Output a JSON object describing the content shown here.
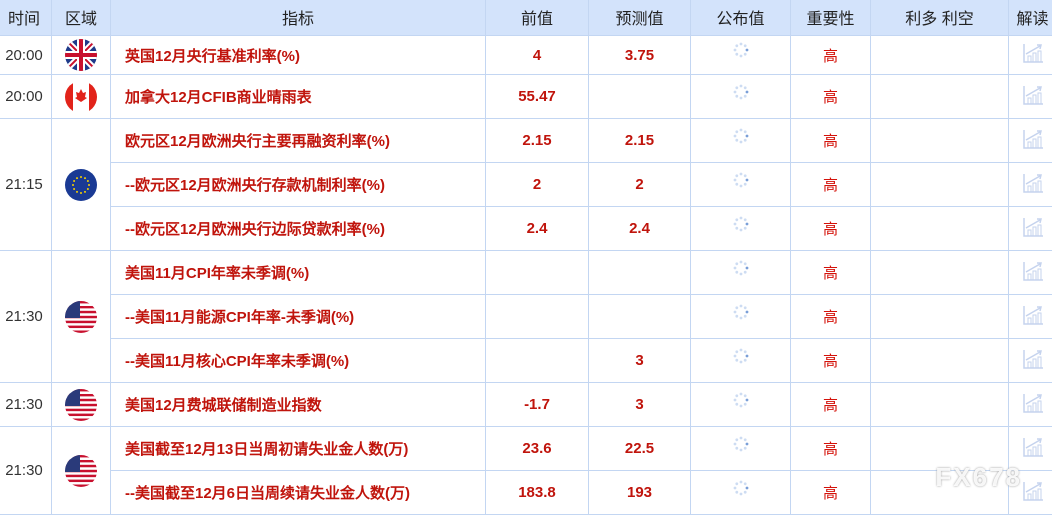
{
  "headers": [
    "时间",
    "区域",
    "指标",
    "前值",
    "预测值",
    "公布值",
    "重要性",
    "利多 利空",
    "解读"
  ],
  "groups": [
    {
      "time": "20:00",
      "flag": "uk-flag",
      "rows": [
        {
          "indicator": "英国12月央行基准利率(%)",
          "prev": "4",
          "forecast": "3.75",
          "importance": "高"
        }
      ]
    },
    {
      "time": "20:00",
      "flag": "canada-flag",
      "rows": [
        {
          "indicator": "加拿大12月CFIB商业晴雨表",
          "prev": "55.47",
          "forecast": "",
          "importance": "高"
        }
      ]
    },
    {
      "time": "21:15",
      "flag": "eu-flag",
      "rows": [
        {
          "indicator": "欧元区12月欧洲央行主要再融资利率(%)",
          "prev": "2.15",
          "forecast": "2.15",
          "importance": "高"
        },
        {
          "indicator": "--欧元区12月欧洲央行存款机制利率(%)",
          "prev": "2",
          "forecast": "2",
          "importance": "高"
        },
        {
          "indicator": "--欧元区12月欧洲央行边际贷款利率(%)",
          "prev": "2.4",
          "forecast": "2.4",
          "importance": "高"
        }
      ]
    },
    {
      "time": "21:30",
      "flag": "us-flag",
      "rows": [
        {
          "indicator": "美国11月CPI年率未季调(%)",
          "prev": "",
          "forecast": "",
          "importance": "高"
        },
        {
          "indicator": "--美国11月能源CPI年率-未季调(%)",
          "prev": "",
          "forecast": "",
          "importance": "高"
        },
        {
          "indicator": "--美国11月核心CPI年率未季调(%)",
          "prev": "",
          "forecast": "3",
          "importance": "高"
        }
      ]
    },
    {
      "time": "21:30",
      "flag": "us-flag",
      "rows": [
        {
          "indicator": "美国12月费城联储制造业指数",
          "prev": "-1.7",
          "forecast": "3",
          "importance": "高"
        }
      ]
    },
    {
      "time": "21:30",
      "flag": "us-flag",
      "rows": [
        {
          "indicator": "美国截至12月13日当周初请失业金人数(万)",
          "prev": "23.6",
          "forecast": "22.5",
          "importance": "高"
        },
        {
          "indicator": "--美国截至12月6日当周续请失业金人数(万)",
          "prev": "183.8",
          "forecast": "193",
          "importance": "高"
        }
      ]
    }
  ],
  "watermark": "FX678",
  "colors": {
    "header_bg": "#d3e3fb",
    "accent_red": "#c0140c",
    "border": "#c3d6f2"
  }
}
